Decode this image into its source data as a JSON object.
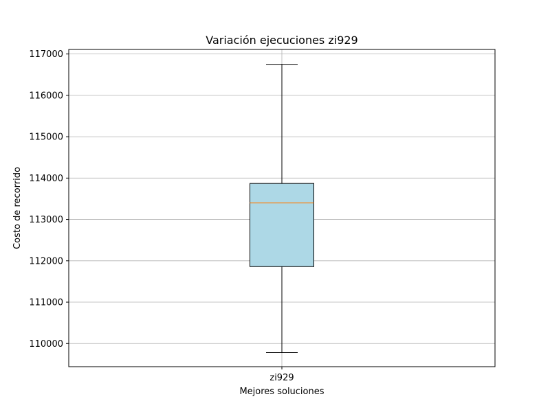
{
  "chart_data": {
    "type": "boxplot",
    "title": "Variación ejecuciones zi929",
    "xlabel": "Mejores soluciones",
    "ylabel": "Costo de recorrido",
    "categories": [
      "zi929"
    ],
    "boxes": [
      {
        "name": "zi929",
        "whisker_low": 109780,
        "q1": 111860,
        "median": 113400,
        "q3": 113870,
        "whisker_high": 116750
      }
    ],
    "ylim": [
      109440,
      117110
    ],
    "yticks": [
      110000,
      111000,
      112000,
      113000,
      114000,
      115000,
      116000,
      117000
    ],
    "grid": true,
    "colors": {
      "box_fill": "#add8e6",
      "median": "#ff7f0e",
      "grid": "#b0b0b0",
      "lines": "#000000"
    }
  }
}
